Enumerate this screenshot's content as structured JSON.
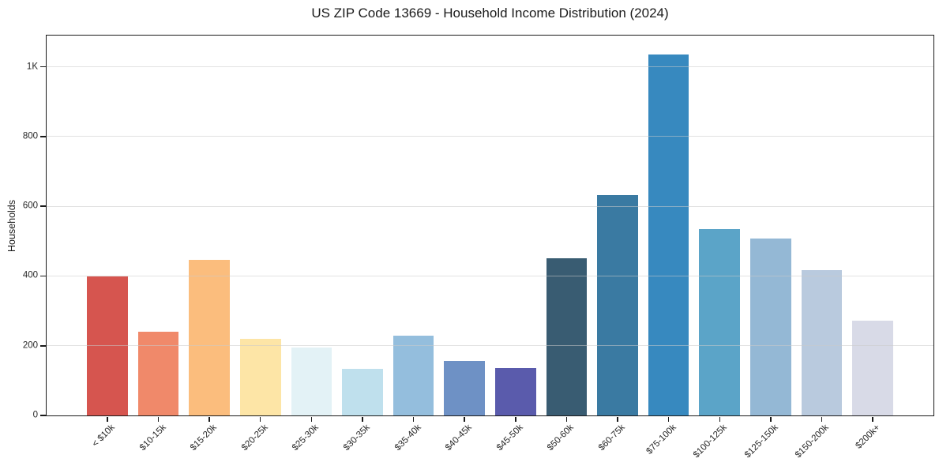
{
  "chart_data": {
    "type": "bar",
    "title": "US ZIP Code 13669 - Household Income Distribution (2024)",
    "xlabel": "",
    "ylabel": "Households",
    "categories": [
      "< $10k",
      "$10-15k",
      "$15-20k",
      "$20-25k",
      "$25-30k",
      "$30-35k",
      "$35-40k",
      "$40-45k",
      "$45-50k",
      "$50-60k",
      "$60-75k",
      "$75-100k",
      "$100-125k",
      "$125-150k",
      "$150-200k",
      "$200k+"
    ],
    "values": [
      400,
      240,
      446,
      220,
      195,
      133,
      228,
      156,
      136,
      451,
      633,
      1035,
      535,
      507,
      418,
      273
    ],
    "bar_colors": [
      "#d6554f",
      "#f0896a",
      "#fbbd7d",
      "#fde5a6",
      "#e3f2f6",
      "#bfe0ed",
      "#94bedd",
      "#6e91c5",
      "#5a5bac",
      "#395c72",
      "#3a7aa2",
      "#3789bf",
      "#5ba4c8",
      "#94b8d5",
      "#b9cade",
      "#d8dae7"
    ],
    "ylim": [
      0,
      1090
    ],
    "yticks": [
      {
        "value": 0,
        "label": "0"
      },
      {
        "value": 200,
        "label": "200"
      },
      {
        "value": 400,
        "label": "400"
      },
      {
        "value": 600,
        "label": "600"
      },
      {
        "value": 800,
        "label": "800"
      },
      {
        "value": 1000,
        "label": "1K"
      }
    ],
    "grid": "horizontal",
    "legend": "none"
  },
  "colors": {
    "background": "#ffffff",
    "spine": "#1a1a1a",
    "gridline": "#cbcbcb",
    "text": "#1a1a1a",
    "tick_text": "#262626"
  }
}
